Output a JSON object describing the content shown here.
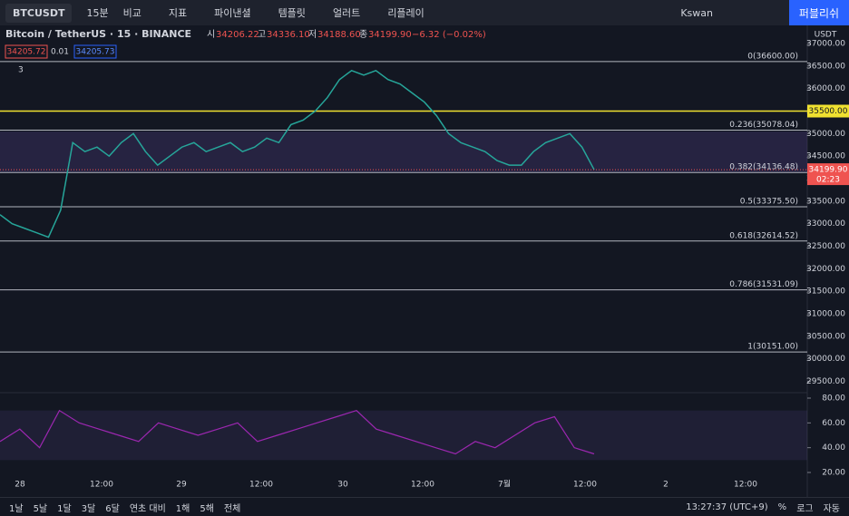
{
  "toolbar": {
    "symbol": "BTCUSDT",
    "interval": "15분",
    "items": [
      "비교",
      "지표",
      "파이낸셜",
      "템플릿",
      "얼러트",
      "리플레이"
    ],
    "user": "Kswan",
    "publish": "퍼블리쉬"
  },
  "legend": {
    "title": "Bitcoin / TetherUS · 15 · BINANCE",
    "ohlc": [
      {
        "k": "시",
        "v": "34206.22"
      },
      {
        "k": "고",
        "v": "34336.10"
      },
      {
        "k": "저",
        "v": "34188.60"
      },
      {
        "k": "종",
        "v": "34199.90"
      }
    ],
    "change": "−6.32 (−0.02%)",
    "bid": "34205.72",
    "spread": "0.01",
    "ask": "34205.73",
    "indicators": "3"
  },
  "price_axis": {
    "unit": "USDT",
    "ylim": [
      29500,
      37000
    ],
    "yticks": [
      {
        "value": 37000,
        "label": "37000.00"
      },
      {
        "value": 36500,
        "label": "36500.00"
      },
      {
        "value": 36000,
        "label": "36000.00"
      },
      {
        "value": 35500,
        "label": "35500.00"
      },
      {
        "value": 35000,
        "label": "35000.00"
      },
      {
        "value": 34500,
        "label": "34500.00"
      },
      {
        "value": 34000,
        "label": "34000.00"
      },
      {
        "value": 33500,
        "label": "33500.00"
      },
      {
        "value": 33000,
        "label": "33000.00"
      },
      {
        "value": 32500,
        "label": "32500.00"
      },
      {
        "value": 32000,
        "label": "32000.00"
      },
      {
        "value": 31500,
        "label": "31500.00"
      },
      {
        "value": 31000,
        "label": "31000.00"
      },
      {
        "value": 30500,
        "label": "30500.00"
      },
      {
        "value": 30000,
        "label": "30000.00"
      },
      {
        "value": 29500,
        "label": "29500.00"
      }
    ],
    "last_price": {
      "value": 34199.9,
      "label": "34199.90"
    },
    "countdown": "02:23"
  },
  "fib_levels": [
    {
      "value": 36600,
      "label": "0(36600.00)"
    },
    {
      "value": 35078.04,
      "label": "0.236(35078.04)"
    },
    {
      "value": 34136.48,
      "label": "0.382(34136.48)"
    },
    {
      "value": 33375.5,
      "label": "0.5(33375.50)"
    },
    {
      "value": 32614.52,
      "label": "0.618(32614.52)"
    },
    {
      "value": 31531.09,
      "label": "0.786(31531.09)"
    },
    {
      "value": 30151,
      "label": "1(30151.00)"
    }
  ],
  "horizontal_lines": [
    {
      "value": 35500,
      "label": "35500.00"
    }
  ],
  "price": [
    33200,
    33000,
    32900,
    32800,
    32700,
    33300,
    34800,
    34600,
    34700,
    34500,
    34800,
    35000,
    34600,
    34300,
    34500,
    34700,
    34800,
    34600,
    34700,
    34800,
    34600,
    34700,
    34900,
    34800,
    35200,
    35300,
    35500,
    35800,
    36200,
    36400,
    36300,
    36400,
    36200,
    36100,
    35900,
    35700,
    35400,
    35000,
    34800,
    34700,
    34600,
    34400,
    34300,
    34300,
    34600,
    34800,
    34900,
    35000,
    34700,
    34200
  ],
  "rsi": {
    "ylim": [
      20,
      80
    ],
    "yticks": [
      {
        "value": 80,
        "label": "80.00"
      },
      {
        "value": 60,
        "label": "60.00"
      },
      {
        "value": 40,
        "label": "40.00"
      },
      {
        "value": 20,
        "label": "20.00"
      }
    ],
    "values": [
      45,
      55,
      40,
      70,
      60,
      55,
      50,
      45,
      60,
      55,
      50,
      55,
      60,
      45,
      50,
      55,
      60,
      65,
      70,
      55,
      50,
      45,
      40,
      35,
      45,
      40,
      50,
      60,
      65,
      40,
      35
    ]
  },
  "time_axis": [
    "28",
    "12:00",
    "29",
    "12:00",
    "30",
    "12:00",
    "7월",
    "12:00",
    "2",
    "12:00"
  ],
  "bottom_bar": {
    "ranges": [
      "1날",
      "5날",
      "1달",
      "3달",
      "6달",
      "연초 대비",
      "1해",
      "5해",
      "전체"
    ],
    "clock": "13:27:37 (UTC+9)",
    "options": [
      "%",
      "로그",
      "자동"
    ]
  }
}
